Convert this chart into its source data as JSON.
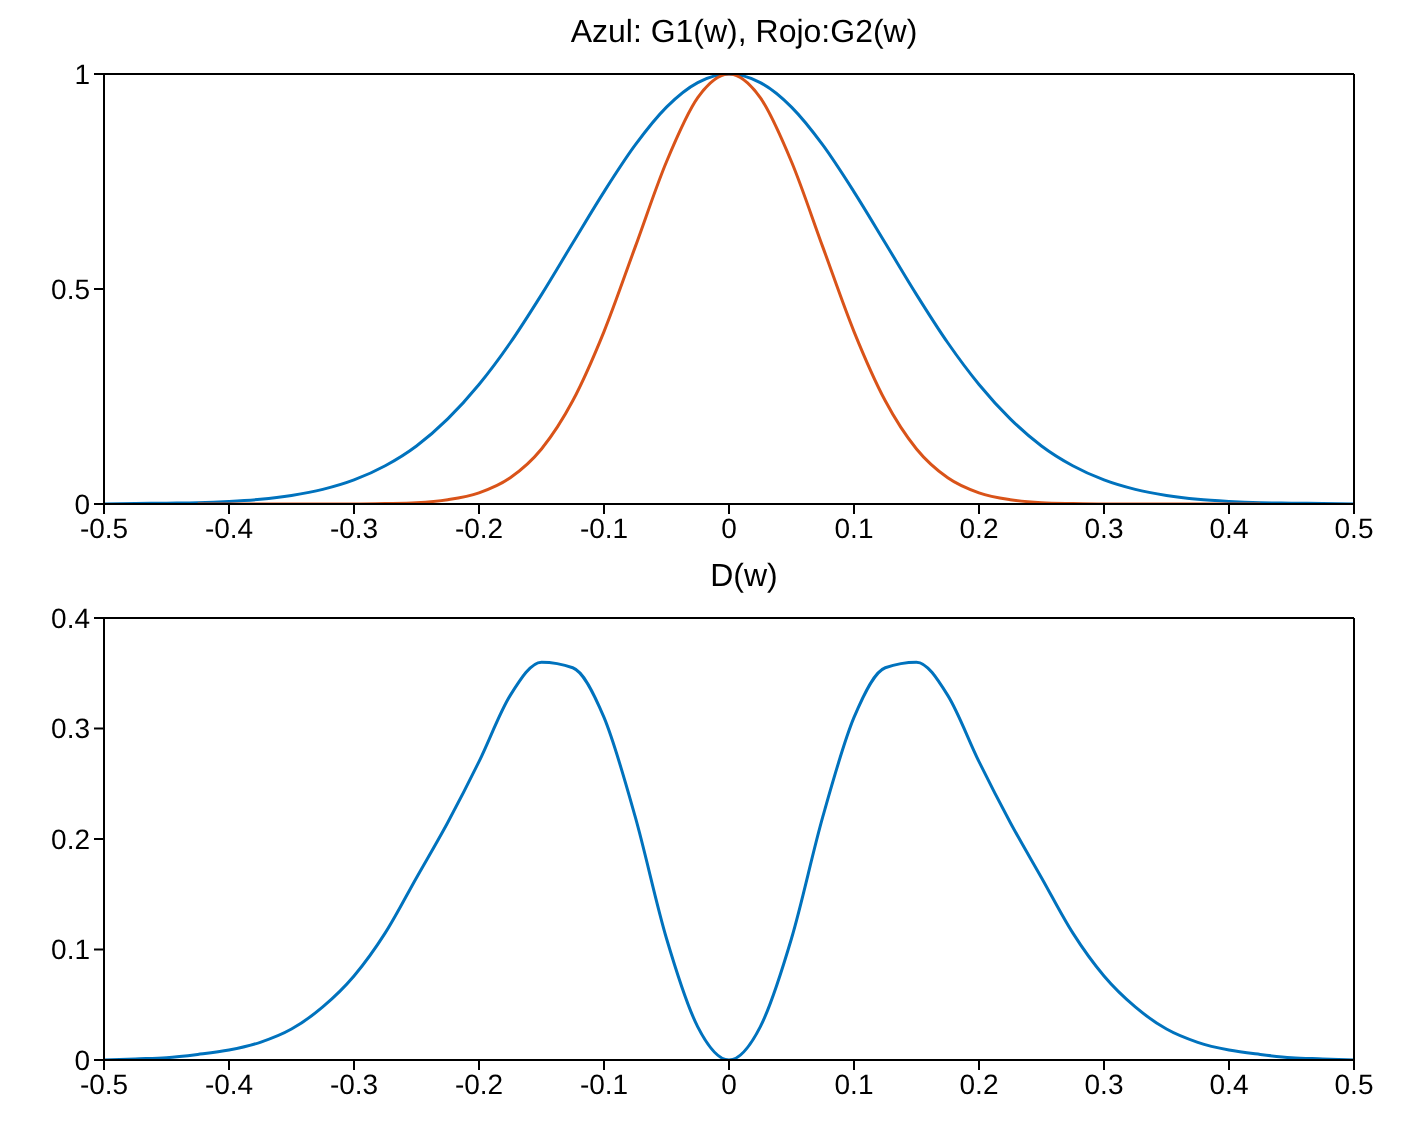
{
  "chart_data": [
    {
      "type": "line",
      "title": "Azul: G1(w), Rojo:G2(w)",
      "x": [
        -0.5,
        -0.475,
        -0.45,
        -0.425,
        -0.4,
        -0.375,
        -0.35,
        -0.325,
        -0.3,
        -0.275,
        -0.25,
        -0.225,
        -0.2,
        -0.175,
        -0.15,
        -0.125,
        -0.1,
        -0.075,
        -0.05,
        -0.025,
        0,
        0.025,
        0.05,
        0.075,
        0.1,
        0.125,
        0.15,
        0.175,
        0.2,
        0.225,
        0.25,
        0.275,
        0.3,
        0.325,
        0.35,
        0.375,
        0.4,
        0.425,
        0.45,
        0.475,
        0.5
      ],
      "series": [
        {
          "color": "#0072bd",
          "values": [
            0,
            0.001,
            0.002,
            0.003,
            0.006,
            0.011,
            0.02,
            0.034,
            0.056,
            0.089,
            0.135,
            0.198,
            0.278,
            0.375,
            0.487,
            0.607,
            0.726,
            0.835,
            0.923,
            0.98,
            1,
            0.98,
            0.923,
            0.835,
            0.726,
            0.607,
            0.487,
            0.375,
            0.278,
            0.198,
            0.135,
            0.089,
            0.056,
            0.034,
            0.02,
            0.011,
            0.006,
            0.003,
            0.002,
            0.001,
            0
          ]
        },
        {
          "color": "#d95319",
          "values": [
            null,
            null,
            null,
            0,
            0,
            0,
            0,
            0,
            0,
            0.001,
            0.003,
            0.01,
            0.026,
            0.061,
            0.128,
            0.24,
            0.401,
            0.598,
            0.796,
            0.945,
            1,
            0.945,
            0.796,
            0.598,
            0.401,
            0.24,
            0.128,
            0.061,
            0.026,
            0.01,
            0.003,
            0.001,
            0,
            0,
            0,
            0,
            0,
            0,
            null,
            null,
            null
          ]
        }
      ],
      "xlim": [
        -0.5,
        0.5
      ],
      "xticks": [
        -0.5,
        -0.4,
        -0.3,
        -0.2,
        -0.1,
        0,
        0.1,
        0.2,
        0.3,
        0.4,
        0.5
      ],
      "ylim": [
        0,
        1
      ],
      "yticks": [
        0,
        0.5,
        1
      ],
      "grid": false,
      "legend": false,
      "marker": "none",
      "line_style": "solid"
    },
    {
      "type": "line",
      "title": "D(w)",
      "x": [
        -0.5,
        -0.475,
        -0.45,
        -0.425,
        -0.4,
        -0.375,
        -0.35,
        -0.325,
        -0.3,
        -0.275,
        -0.25,
        -0.225,
        -0.2,
        -0.175,
        -0.15,
        -0.125,
        -0.1,
        -0.075,
        -0.05,
        -0.025,
        0,
        0.025,
        0.05,
        0.075,
        0.1,
        0.125,
        0.15,
        0.175,
        0.2,
        0.225,
        0.25,
        0.275,
        0.3,
        0.325,
        0.35,
        0.375,
        0.4,
        0.425,
        0.45,
        0.475,
        0.5
      ],
      "series": [
        {
          "color": "#0072bd",
          "values": [
            0,
            0.001,
            0.002,
            0.005,
            0.009,
            0.016,
            0.028,
            0.048,
            0.076,
            0.115,
            0.165,
            0.215,
            0.27,
            0.33,
            0.36,
            0.355,
            0.31,
            0.22,
            0.11,
            0.03,
            0,
            0.03,
            0.11,
            0.22,
            0.31,
            0.355,
            0.36,
            0.33,
            0.27,
            0.215,
            0.165,
            0.115,
            0.076,
            0.048,
            0.028,
            0.016,
            0.009,
            0.005,
            0.002,
            0.001,
            0
          ]
        }
      ],
      "xlim": [
        -0.5,
        0.5
      ],
      "xticks": [
        -0.5,
        -0.4,
        -0.3,
        -0.2,
        -0.1,
        0,
        0.1,
        0.2,
        0.3,
        0.4,
        0.5
      ],
      "ylim": [
        0,
        0.4
      ],
      "yticks": [
        0,
        0.1,
        0.2,
        0.3,
        0.4
      ],
      "grid": false,
      "legend": false,
      "marker": "none",
      "line_style": "solid"
    }
  ]
}
